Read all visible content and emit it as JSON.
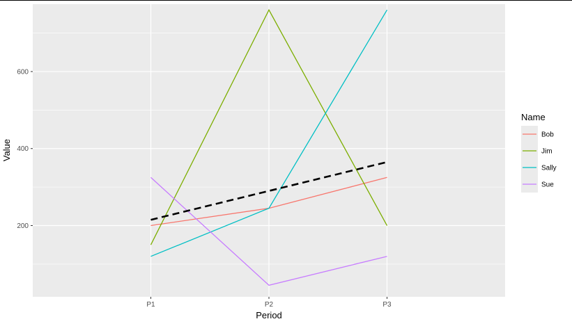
{
  "chart_data": {
    "type": "line",
    "xlabel": "Period",
    "ylabel": "Value",
    "categories": [
      "P1",
      "P2",
      "P3"
    ],
    "ylim": [
      15,
      775
    ],
    "y_ticks": [
      200,
      400,
      600
    ],
    "grid": true,
    "background": "#ebebeb",
    "series": [
      {
        "name": "Bob",
        "color": "#f8766d",
        "values": [
          200,
          245,
          325
        ]
      },
      {
        "name": "Jim",
        "color": "#7cae00",
        "values": [
          150,
          760,
          200
        ]
      },
      {
        "name": "Sally",
        "color": "#00bfc4",
        "values": [
          120,
          245,
          760
        ]
      },
      {
        "name": "Sue",
        "color": "#c77cff",
        "values": [
          325,
          45,
          120
        ]
      }
    ],
    "trend": {
      "style": "dashed",
      "color": "#000000",
      "values": [
        215,
        290,
        365
      ]
    },
    "legend": {
      "title": "Name",
      "position": "right"
    }
  }
}
